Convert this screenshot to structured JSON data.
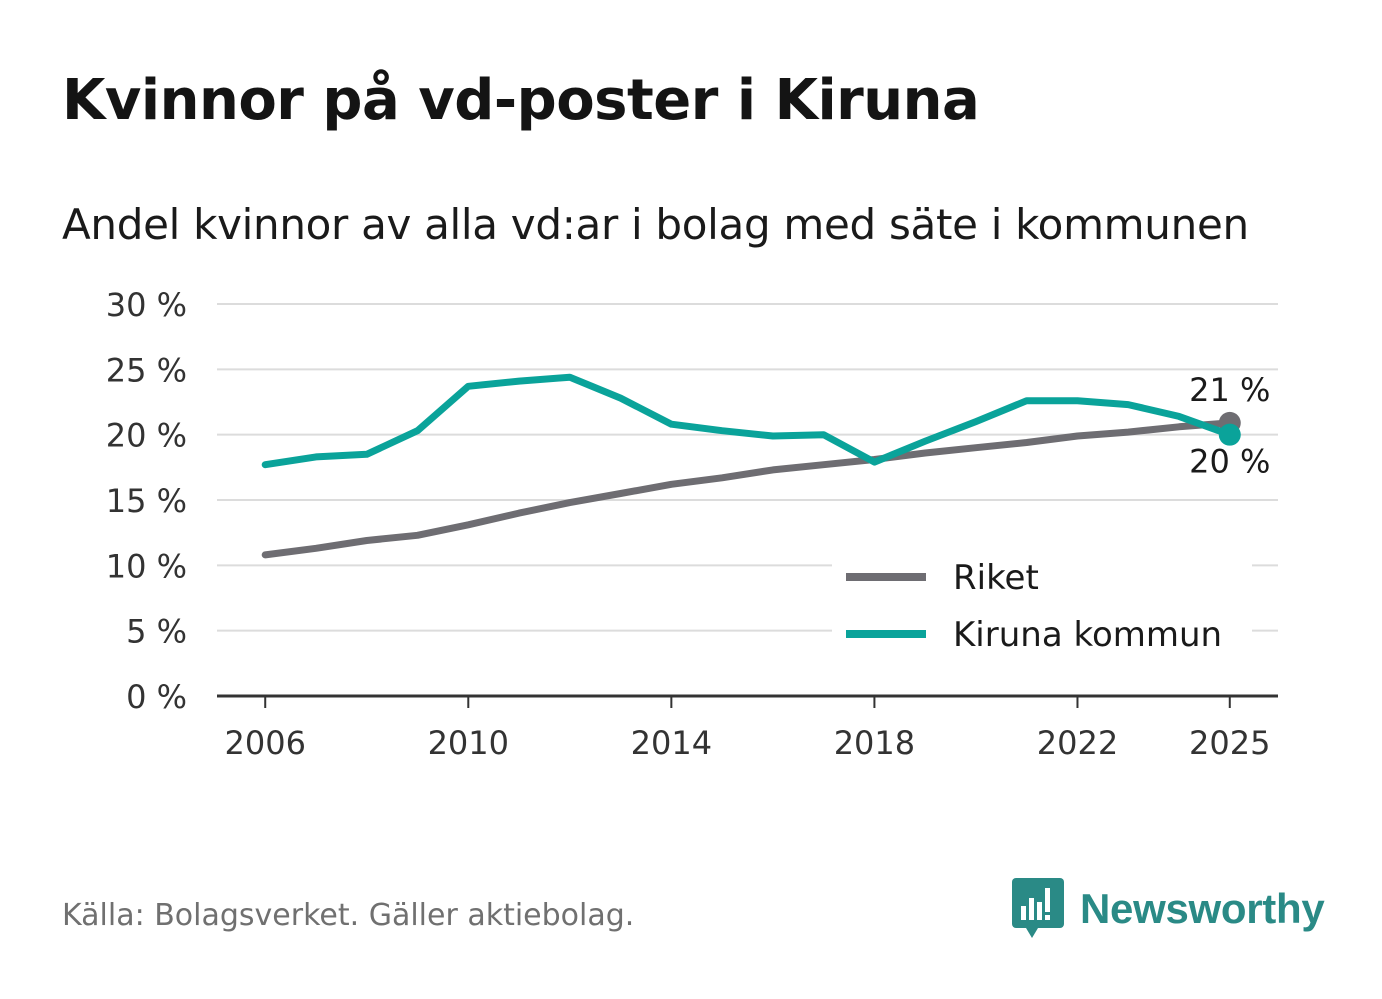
{
  "title": "Kvinnor på vd-poster i Kiruna",
  "subtitle": "Andel kvinnor av alla vd:ar i bolag med säte i kommunen",
  "source": "Källa: Bolagsverket. Gäller aktiebolag.",
  "brand": "Newsworthy",
  "colors": {
    "riket": "#6e6d72",
    "kiruna": "#0aa39a",
    "grid": "#dcdcdc",
    "axis": "#333333",
    "brand": "#2a8a86"
  },
  "chart_data": {
    "type": "line",
    "title": "Kvinnor på vd-poster i Kiruna",
    "subtitle": "Andel kvinnor av alla vd:ar i bolag med säte i kommunen",
    "xlabel": "",
    "ylabel": "",
    "x": [
      2006,
      2007,
      2008,
      2009,
      2010,
      2011,
      2012,
      2013,
      2014,
      2015,
      2016,
      2017,
      2018,
      2019,
      2020,
      2021,
      2022,
      2023,
      2024,
      2025
    ],
    "xlim": [
      2005.05,
      2025.95
    ],
    "ylim": [
      0,
      30
    ],
    "y_ticks": [
      0,
      5,
      10,
      15,
      20,
      25,
      30
    ],
    "y_tick_labels": [
      "0 %",
      "5 %",
      "10 %",
      "15 %",
      "20 %",
      "25 %",
      "30 %"
    ],
    "x_ticks": [
      2006,
      2010,
      2014,
      2018,
      2022,
      2025
    ],
    "x_tick_labels": [
      "2006",
      "2010",
      "2014",
      "2018",
      "2022",
      "2025"
    ],
    "grid": true,
    "legend_position": "bottom-right",
    "series": [
      {
        "name": "Riket",
        "key": "riket",
        "values": [
          10.8,
          11.3,
          11.9,
          12.3,
          13.1,
          14.0,
          14.8,
          15.5,
          16.2,
          16.7,
          17.3,
          17.7,
          18.1,
          18.6,
          19.0,
          19.4,
          19.9,
          20.2,
          20.6,
          20.9
        ],
        "end_label": "21 %"
      },
      {
        "name": "Kiruna kommun",
        "key": "kiruna",
        "values": [
          17.7,
          18.3,
          18.5,
          20.3,
          23.7,
          24.1,
          24.4,
          22.8,
          20.8,
          20.3,
          19.9,
          20.0,
          17.9,
          19.5,
          21.0,
          22.6,
          22.6,
          22.3,
          21.4,
          20.0
        ],
        "end_label": "20 %"
      }
    ]
  }
}
